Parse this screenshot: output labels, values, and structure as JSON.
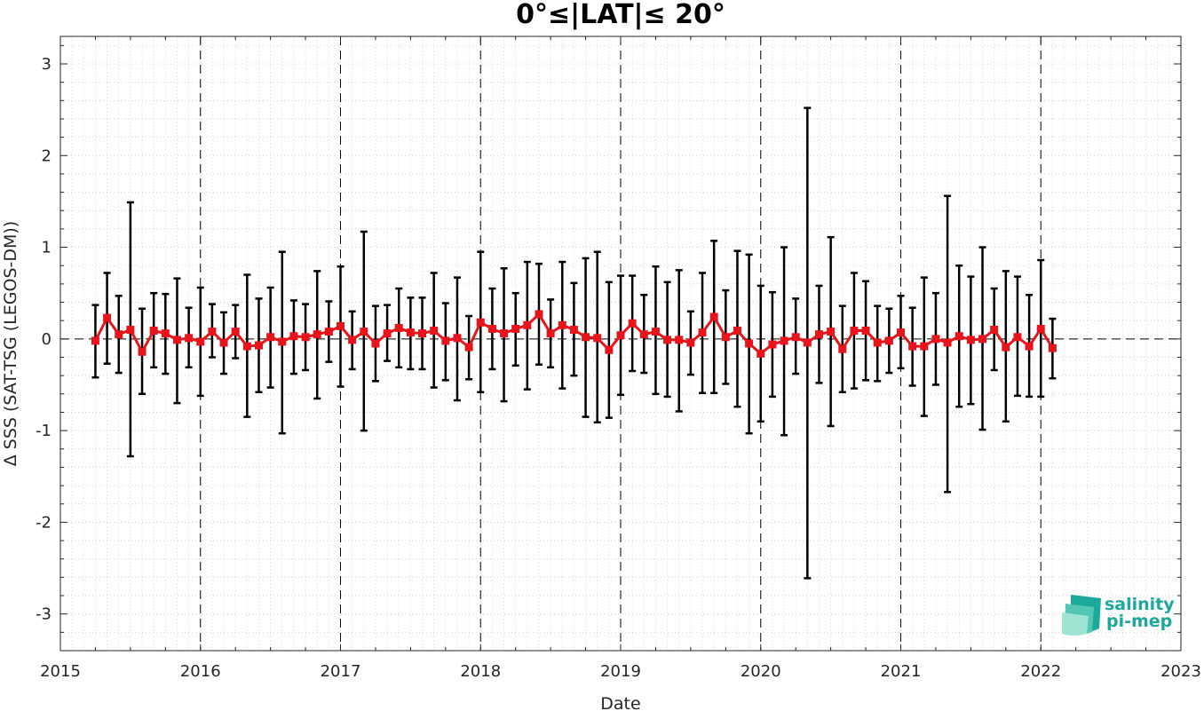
{
  "chart_data": {
    "type": "line",
    "title": "0°≤|LAT|≤ 20°",
    "xlabel": "Date",
    "ylabel": "Δ SSS (SAT-TSG (LEGOS-DM))",
    "xlim": [
      2015,
      2023
    ],
    "ylim": [
      -3.4,
      3.3
    ],
    "xticks": [
      "2015",
      "2016",
      "2017",
      "2018",
      "2019",
      "2020",
      "2021",
      "2022",
      "2023"
    ],
    "yticks": [
      "-3",
      "-2",
      "-1",
      "0",
      "1",
      "2",
      "3"
    ],
    "grid": true,
    "year_dividers": [
      2016,
      2017,
      2018,
      2019,
      2020,
      2021,
      2022
    ],
    "zero_line": true,
    "series": [
      {
        "color": "#e8141c",
        "errorbar_color": "#000000",
        "x": [
          "2015-04",
          "2015-05",
          "2015-06",
          "2015-07",
          "2015-08",
          "2015-09",
          "2015-10",
          "2015-11",
          "2015-12",
          "2016-01",
          "2016-02",
          "2016-03",
          "2016-04",
          "2016-05",
          "2016-06",
          "2016-07",
          "2016-08",
          "2016-09",
          "2016-10",
          "2016-11",
          "2016-12",
          "2017-01",
          "2017-02",
          "2017-03",
          "2017-04",
          "2017-05",
          "2017-06",
          "2017-07",
          "2017-08",
          "2017-09",
          "2017-10",
          "2017-11",
          "2017-12",
          "2018-01",
          "2018-02",
          "2018-03",
          "2018-04",
          "2018-05",
          "2018-06",
          "2018-07",
          "2018-08",
          "2018-09",
          "2018-10",
          "2018-11",
          "2018-12",
          "2019-01",
          "2019-02",
          "2019-03",
          "2019-04",
          "2019-05",
          "2019-06",
          "2019-07",
          "2019-08",
          "2019-09",
          "2019-10",
          "2019-11",
          "2019-12",
          "2020-01",
          "2020-02",
          "2020-03",
          "2020-04",
          "2020-05",
          "2020-06",
          "2020-07",
          "2020-08",
          "2020-09",
          "2020-10",
          "2020-11",
          "2020-12",
          "2021-01",
          "2021-02",
          "2021-03",
          "2021-04",
          "2021-05",
          "2021-06",
          "2021-07",
          "2021-08",
          "2021-09",
          "2021-10",
          "2021-11",
          "2021-12",
          "2022-01",
          "2022-02"
        ],
        "y": [
          -0.02,
          0.23,
          0.05,
          0.1,
          -0.14,
          0.09,
          0.06,
          -0.01,
          0.01,
          -0.03,
          0.08,
          -0.04,
          0.08,
          -0.08,
          -0.07,
          0.02,
          -0.03,
          0.03,
          0.02,
          0.05,
          0.08,
          0.14,
          -0.01,
          0.08,
          -0.05,
          0.06,
          0.12,
          0.07,
          0.06,
          0.09,
          -0.02,
          0.01,
          -0.09,
          0.18,
          0.11,
          0.06,
          0.11,
          0.15,
          0.27,
          0.06,
          0.15,
          0.1,
          0.02,
          0.01,
          -0.12,
          0.04,
          0.17,
          0.05,
          0.08,
          -0.01,
          -0.01,
          -0.04,
          0.07,
          0.24,
          0.02,
          0.09,
          -0.05,
          -0.16,
          -0.06,
          -0.02,
          0.02,
          -0.04,
          0.05,
          0.08,
          -0.11,
          0.09,
          0.09,
          -0.04,
          -0.02,
          0.07,
          -0.08,
          -0.08,
          0.0,
          -0.04,
          0.03,
          -0.01,
          0.0,
          0.1,
          -0.09,
          0.02,
          -0.08,
          0.11,
          -0.1
        ],
        "upper": [
          0.37,
          0.72,
          0.47,
          1.49,
          0.33,
          0.5,
          0.49,
          0.66,
          0.34,
          0.56,
          0.38,
          0.29,
          0.37,
          0.7,
          0.44,
          0.56,
          0.95,
          0.42,
          0.38,
          0.74,
          0.41,
          0.79,
          0.3,
          1.17,
          0.36,
          0.37,
          0.55,
          0.45,
          0.45,
          0.72,
          0.39,
          0.67,
          0.25,
          0.95,
          0.55,
          0.77,
          0.5,
          0.84,
          0.82,
          0.43,
          0.84,
          0.61,
          0.88,
          0.95,
          0.62,
          0.69,
          0.69,
          0.48,
          0.79,
          0.62,
          0.75,
          0.3,
          0.72,
          1.07,
          0.53,
          0.96,
          0.92,
          0.58,
          0.51,
          1.0,
          0.44,
          2.52,
          0.58,
          1.11,
          0.36,
          0.72,
          0.63,
          0.36,
          0.33,
          0.47,
          0.34,
          0.67,
          0.5,
          1.56,
          0.8,
          0.68,
          1.0,
          0.55,
          0.74,
          0.68,
          0.48,
          0.86,
          0.22
        ],
        "lower": [
          -0.42,
          -0.27,
          -0.37,
          -1.28,
          -0.6,
          -0.31,
          -0.38,
          -0.7,
          -0.31,
          -0.62,
          -0.2,
          -0.38,
          -0.21,
          -0.85,
          -0.58,
          -0.53,
          -1.03,
          -0.38,
          -0.34,
          -0.65,
          -0.25,
          -0.52,
          -0.33,
          -1.0,
          -0.46,
          -0.24,
          -0.31,
          -0.33,
          -0.33,
          -0.53,
          -0.45,
          -0.67,
          -0.44,
          -0.58,
          -0.33,
          -0.68,
          -0.29,
          -0.55,
          -0.28,
          -0.31,
          -0.54,
          -0.4,
          -0.85,
          -0.91,
          -0.86,
          -0.61,
          -0.35,
          -0.37,
          -0.6,
          -0.63,
          -0.79,
          -0.39,
          -0.59,
          -0.59,
          -0.49,
          -0.74,
          -1.03,
          -0.9,
          -0.63,
          -1.05,
          -0.38,
          -2.61,
          -0.48,
          -0.95,
          -0.58,
          -0.54,
          -0.45,
          -0.46,
          -0.37,
          -0.32,
          -0.51,
          -0.84,
          -0.5,
          -1.67,
          -0.74,
          -0.71,
          -0.99,
          -0.34,
          -0.9,
          -0.62,
          -0.63,
          -0.63,
          -0.43
        ]
      }
    ]
  },
  "logo": {
    "line1": "salinity",
    "line2": "pi-mep",
    "color": "#1aa99a"
  }
}
